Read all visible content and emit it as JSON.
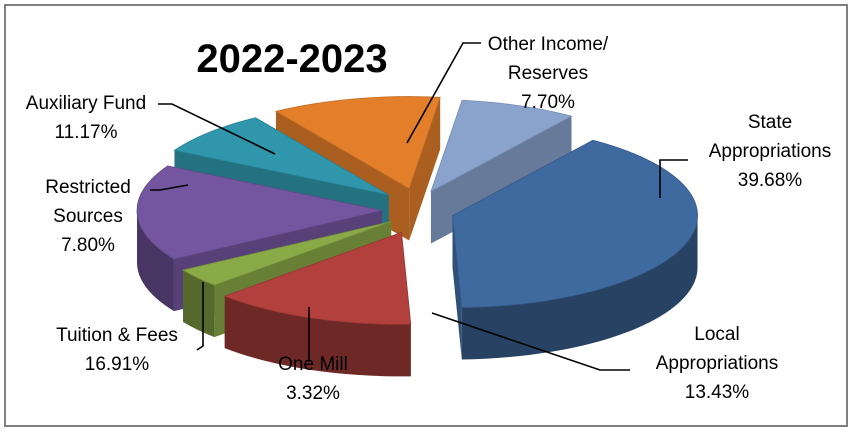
{
  "chart_data": {
    "type": "pie",
    "title": "2022-2023",
    "three_d": true,
    "exploded": true,
    "slices": [
      {
        "label_lines": [
          "State",
          "Appropriations"
        ],
        "value": 39.68,
        "value_text": "39.68%",
        "color": "#3f6aa0"
      },
      {
        "label_lines": [
          "Local",
          "Appropriations"
        ],
        "value": 13.43,
        "value_text": "13.43%",
        "color": "#b2413d"
      },
      {
        "label_lines": [
          "One Mill"
        ],
        "value": 3.32,
        "value_text": "3.32%",
        "color": "#8aaa48"
      },
      {
        "label_lines": [
          "Tuition & Fees"
        ],
        "value": 16.91,
        "value_text": "16.91%",
        "color": "#7456a0"
      },
      {
        "label_lines": [
          "Restricted",
          "Sources"
        ],
        "value": 7.8,
        "value_text": "7.80%",
        "color": "#2f96ac"
      },
      {
        "label_lines": [
          "Auxiliary Fund"
        ],
        "value": 11.17,
        "value_text": "11.17%",
        "color": "#e37f2a"
      },
      {
        "label_lines": [
          "Other Income/",
          "Reserves"
        ],
        "value": 7.7,
        "value_text": "7.70%",
        "color": "#8aa3cd"
      }
    ]
  }
}
